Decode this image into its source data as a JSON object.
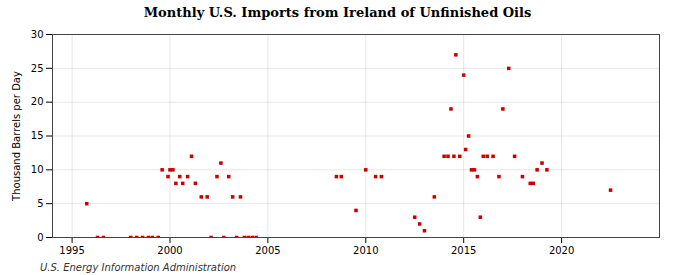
{
  "chart_data": {
    "type": "scatter",
    "title": "Monthly U.S. Imports from Ireland of Unfinished Oils",
    "ylabel": "Thousand Barrels per Day",
    "source": "U.S. Energy Information Administration",
    "color": "#cc0000",
    "marker": "square",
    "grid": true,
    "xlim": [
      1994.0,
      2025.0
    ],
    "ylim": [
      0,
      30
    ],
    "xticks": [
      1995,
      2000,
      2005,
      2010,
      2015,
      2020
    ],
    "yticks": [
      0,
      5,
      10,
      15,
      20,
      25,
      30
    ],
    "x": [
      1995.75,
      1996.3,
      1996.6,
      1998.0,
      1998.3,
      1998.6,
      1998.9,
      1999.1,
      1999.4,
      1999.6,
      1999.9,
      2000.0,
      2000.15,
      2000.3,
      2000.5,
      2000.65,
      2000.9,
      2001.1,
      2001.3,
      2001.6,
      2001.9,
      2002.1,
      2002.4,
      2002.6,
      2002.75,
      2003.0,
      2003.2,
      2003.4,
      2003.6,
      2003.8,
      2004.0,
      2004.2,
      2004.4,
      2008.5,
      2008.75,
      2009.5,
      2010.0,
      2010.5,
      2010.8,
      2012.5,
      2012.75,
      2013.0,
      2013.5,
      2014.0,
      2014.2,
      2014.35,
      2014.5,
      2014.6,
      2014.8,
      2015.0,
      2015.1,
      2015.25,
      2015.4,
      2015.55,
      2015.7,
      2015.85,
      2016.0,
      2016.2,
      2016.5,
      2016.8,
      2017.0,
      2017.3,
      2017.6,
      2018.0,
      2018.4,
      2018.55,
      2018.75,
      2019.0,
      2019.25,
      2022.5
    ],
    "values": [
      5,
      0,
      0,
      0,
      0,
      0,
      0,
      0,
      0,
      10,
      9,
      10,
      10,
      8,
      9,
      8,
      9,
      12,
      8,
      6,
      6,
      0,
      9,
      11,
      0,
      9,
      6,
      0,
      6,
      0,
      0,
      0,
      0,
      9,
      9,
      4,
      10,
      9,
      9,
      3,
      2,
      1,
      6,
      12,
      12,
      19,
      12,
      27,
      12,
      24,
      13,
      15,
      10,
      10,
      9,
      3,
      12,
      12,
      12,
      9,
      19,
      25,
      12,
      9,
      8,
      8,
      10,
      11,
      10,
      7
    ]
  }
}
